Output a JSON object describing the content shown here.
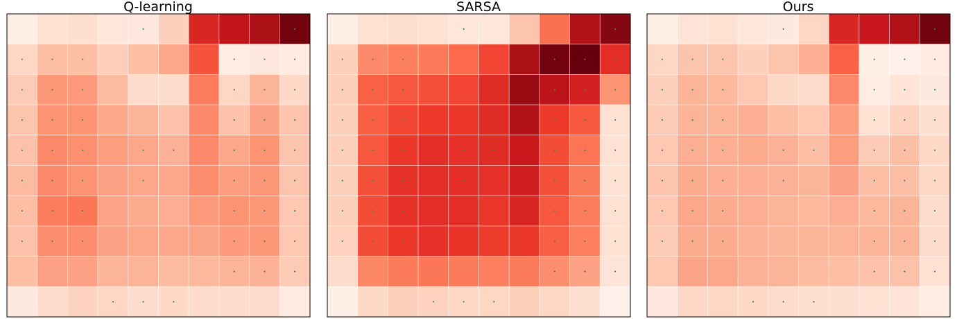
{
  "chart_data": [
    {
      "type": "heatmap",
      "title": "Q-learning",
      "colormap": "Reds",
      "vrange": [
        0,
        1
      ],
      "rows": 10,
      "cols": 10,
      "values": [
        [
          0.04,
          0.12,
          0.13,
          0.09,
          0.08,
          0.18,
          0.7,
          0.78,
          0.86,
          0.98
        ],
        [
          0.16,
          0.24,
          0.24,
          0.19,
          0.24,
          0.31,
          0.56,
          0.05,
          0.08,
          0.06
        ],
        [
          0.2,
          0.36,
          0.35,
          0.25,
          0.14,
          0.14,
          0.44,
          0.16,
          0.27,
          0.15
        ],
        [
          0.22,
          0.37,
          0.37,
          0.31,
          0.27,
          0.23,
          0.4,
          0.23,
          0.33,
          0.22
        ],
        [
          0.23,
          0.4,
          0.38,
          0.34,
          0.31,
          0.28,
          0.4,
          0.31,
          0.37,
          0.22
        ],
        [
          0.25,
          0.4,
          0.37,
          0.33,
          0.31,
          0.31,
          0.39,
          0.34,
          0.36,
          0.22
        ],
        [
          0.24,
          0.44,
          0.46,
          0.32,
          0.3,
          0.29,
          0.35,
          0.37,
          0.36,
          0.21
        ],
        [
          0.23,
          0.39,
          0.39,
          0.33,
          0.31,
          0.31,
          0.32,
          0.35,
          0.36,
          0.21
        ],
        [
          0.24,
          0.33,
          0.33,
          0.27,
          0.27,
          0.25,
          0.26,
          0.27,
          0.28,
          0.2
        ],
        [
          0.07,
          0.14,
          0.17,
          0.16,
          0.14,
          0.15,
          0.14,
          0.14,
          0.14,
          0.06
        ]
      ],
      "markers": [
        [
          0,
          4
        ],
        [
          0,
          9
        ],
        [
          1,
          0
        ],
        [
          1,
          1
        ],
        [
          1,
          2
        ],
        [
          1,
          7
        ],
        [
          1,
          8
        ],
        [
          1,
          9
        ],
        [
          2,
          0
        ],
        [
          2,
          1
        ],
        [
          2,
          2
        ],
        [
          2,
          7
        ],
        [
          2,
          8
        ],
        [
          2,
          9
        ],
        [
          3,
          0
        ],
        [
          3,
          1
        ],
        [
          3,
          2
        ],
        [
          3,
          7
        ],
        [
          3,
          8
        ],
        [
          3,
          9
        ],
        [
          4,
          0
        ],
        [
          4,
          1
        ],
        [
          4,
          2
        ],
        [
          4,
          4
        ],
        [
          4,
          5
        ],
        [
          4,
          7
        ],
        [
          4,
          8
        ],
        [
          4,
          9
        ],
        [
          5,
          0
        ],
        [
          5,
          1
        ],
        [
          5,
          2
        ],
        [
          5,
          4
        ],
        [
          5,
          7
        ],
        [
          5,
          8
        ],
        [
          5,
          9
        ],
        [
          6,
          0
        ],
        [
          6,
          1
        ],
        [
          6,
          2
        ],
        [
          6,
          7
        ],
        [
          6,
          8
        ],
        [
          6,
          9
        ],
        [
          7,
          0
        ],
        [
          7,
          1
        ],
        [
          7,
          2
        ],
        [
          7,
          7
        ],
        [
          7,
          8
        ],
        [
          7,
          9
        ],
        [
          8,
          7
        ],
        [
          8,
          8
        ],
        [
          8,
          9
        ],
        [
          9,
          3
        ],
        [
          9,
          4
        ],
        [
          9,
          5
        ]
      ],
      "marker_color": "#2e8b57"
    },
    {
      "type": "heatmap",
      "title": "SARSA",
      "colormap": "Reds",
      "vrange": [
        0,
        1
      ],
      "rows": 10,
      "cols": 10,
      "values": [
        [
          0.04,
          0.12,
          0.13,
          0.12,
          0.09,
          0.09,
          0.22,
          0.48,
          0.84,
          0.94
        ],
        [
          0.18,
          0.4,
          0.43,
          0.45,
          0.5,
          0.6,
          0.86,
          0.98,
          1.0,
          0.67
        ],
        [
          0.18,
          0.52,
          0.55,
          0.57,
          0.6,
          0.68,
          0.9,
          0.8,
          0.72,
          0.37
        ],
        [
          0.18,
          0.53,
          0.6,
          0.63,
          0.64,
          0.68,
          0.83,
          0.63,
          0.55,
          0.12
        ],
        [
          0.18,
          0.55,
          0.64,
          0.67,
          0.66,
          0.68,
          0.75,
          0.58,
          0.47,
          0.12
        ],
        [
          0.18,
          0.57,
          0.66,
          0.67,
          0.67,
          0.66,
          0.73,
          0.57,
          0.45,
          0.12
        ],
        [
          0.18,
          0.58,
          0.66,
          0.67,
          0.67,
          0.64,
          0.7,
          0.55,
          0.44,
          0.12
        ],
        [
          0.17,
          0.58,
          0.64,
          0.66,
          0.65,
          0.62,
          0.64,
          0.53,
          0.43,
          0.12
        ],
        [
          0.14,
          0.41,
          0.45,
          0.46,
          0.45,
          0.43,
          0.45,
          0.39,
          0.33,
          0.1
        ],
        [
          0.04,
          0.15,
          0.18,
          0.17,
          0.15,
          0.16,
          0.18,
          0.16,
          0.13,
          0.03
        ]
      ],
      "markers": [
        [
          0,
          4
        ],
        [
          0,
          9
        ],
        [
          1,
          0
        ],
        [
          1,
          1
        ],
        [
          1,
          2
        ],
        [
          1,
          7
        ],
        [
          1,
          8
        ],
        [
          1,
          9
        ],
        [
          2,
          0
        ],
        [
          2,
          1
        ],
        [
          2,
          2
        ],
        [
          2,
          7
        ],
        [
          2,
          8
        ],
        [
          2,
          9
        ],
        [
          3,
          0
        ],
        [
          3,
          1
        ],
        [
          3,
          2
        ],
        [
          3,
          7
        ],
        [
          3,
          8
        ],
        [
          3,
          9
        ],
        [
          4,
          0
        ],
        [
          4,
          1
        ],
        [
          4,
          2
        ],
        [
          4,
          4
        ],
        [
          4,
          5
        ],
        [
          4,
          7
        ],
        [
          4,
          8
        ],
        [
          4,
          9
        ],
        [
          5,
          0
        ],
        [
          5,
          1
        ],
        [
          5,
          2
        ],
        [
          5,
          4
        ],
        [
          5,
          7
        ],
        [
          5,
          8
        ],
        [
          5,
          9
        ],
        [
          6,
          0
        ],
        [
          6,
          1
        ],
        [
          6,
          2
        ],
        [
          6,
          7
        ],
        [
          6,
          8
        ],
        [
          6,
          9
        ],
        [
          7,
          0
        ],
        [
          7,
          1
        ],
        [
          7,
          2
        ],
        [
          7,
          7
        ],
        [
          7,
          8
        ],
        [
          7,
          9
        ],
        [
          8,
          7
        ],
        [
          8,
          8
        ],
        [
          8,
          9
        ],
        [
          9,
          3
        ],
        [
          9,
          4
        ],
        [
          9,
          5
        ]
      ],
      "marker_color": "#2e8b57"
    },
    {
      "type": "heatmap",
      "title": "Ours",
      "colormap": "Reds",
      "vrange": [
        0,
        1
      ],
      "rows": 10,
      "cols": 10,
      "values": [
        [
          0.04,
          0.11,
          0.12,
          0.09,
          0.07,
          0.16,
          0.7,
          0.76,
          0.84,
          0.98
        ],
        [
          0.16,
          0.22,
          0.22,
          0.18,
          0.22,
          0.29,
          0.52,
          0.04,
          0.03,
          0.06
        ],
        [
          0.18,
          0.27,
          0.26,
          0.21,
          0.15,
          0.14,
          0.4,
          0.05,
          0.11,
          0.07
        ],
        [
          0.2,
          0.27,
          0.27,
          0.29,
          0.24,
          0.21,
          0.34,
          0.12,
          0.17,
          0.13
        ],
        [
          0.21,
          0.29,
          0.29,
          0.3,
          0.28,
          0.24,
          0.34,
          0.2,
          0.24,
          0.15
        ],
        [
          0.22,
          0.3,
          0.29,
          0.29,
          0.28,
          0.27,
          0.33,
          0.24,
          0.24,
          0.15
        ],
        [
          0.21,
          0.31,
          0.3,
          0.29,
          0.27,
          0.26,
          0.29,
          0.26,
          0.27,
          0.14
        ],
        [
          0.2,
          0.3,
          0.3,
          0.28,
          0.27,
          0.27,
          0.27,
          0.27,
          0.27,
          0.14
        ],
        [
          0.21,
          0.32,
          0.31,
          0.28,
          0.27,
          0.25,
          0.24,
          0.23,
          0.23,
          0.12
        ],
        [
          0.08,
          0.15,
          0.16,
          0.15,
          0.14,
          0.13,
          0.13,
          0.12,
          0.11,
          0.05
        ]
      ],
      "markers": [
        [
          0,
          4
        ],
        [
          0,
          9
        ],
        [
          1,
          0
        ],
        [
          1,
          1
        ],
        [
          1,
          2
        ],
        [
          1,
          7
        ],
        [
          1,
          8
        ],
        [
          1,
          9
        ],
        [
          2,
          0
        ],
        [
          2,
          1
        ],
        [
          2,
          2
        ],
        [
          2,
          7
        ],
        [
          2,
          8
        ],
        [
          2,
          9
        ],
        [
          3,
          0
        ],
        [
          3,
          1
        ],
        [
          3,
          2
        ],
        [
          3,
          7
        ],
        [
          3,
          8
        ],
        [
          3,
          9
        ],
        [
          4,
          0
        ],
        [
          4,
          1
        ],
        [
          4,
          2
        ],
        [
          4,
          4
        ],
        [
          4,
          5
        ],
        [
          4,
          7
        ],
        [
          4,
          8
        ],
        [
          4,
          9
        ],
        [
          5,
          0
        ],
        [
          5,
          1
        ],
        [
          5,
          2
        ],
        [
          5,
          4
        ],
        [
          5,
          7
        ],
        [
          5,
          8
        ],
        [
          5,
          9
        ],
        [
          6,
          0
        ],
        [
          6,
          1
        ],
        [
          6,
          2
        ],
        [
          6,
          7
        ],
        [
          6,
          8
        ],
        [
          6,
          9
        ],
        [
          7,
          0
        ],
        [
          7,
          1
        ],
        [
          7,
          2
        ],
        [
          7,
          7
        ],
        [
          7,
          8
        ],
        [
          7,
          9
        ],
        [
          8,
          7
        ],
        [
          8,
          8
        ],
        [
          8,
          9
        ],
        [
          9,
          3
        ],
        [
          9,
          4
        ],
        [
          9,
          5
        ]
      ],
      "marker_color": "#2e8b57"
    }
  ]
}
